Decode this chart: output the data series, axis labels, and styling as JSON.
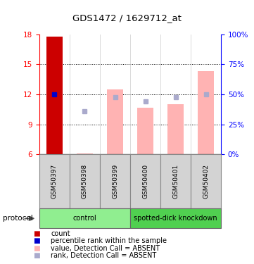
{
  "title": "GDS1472 / 1629712_at",
  "samples": [
    "GSM50397",
    "GSM50398",
    "GSM50399",
    "GSM50400",
    "GSM50401",
    "GSM50402"
  ],
  "ylim_left": [
    6,
    18
  ],
  "ylim_right": [
    0,
    100
  ],
  "yticks_left": [
    6,
    9,
    12,
    15,
    18
  ],
  "yticks_right": [
    0,
    25,
    50,
    75,
    100
  ],
  "yticklabels_right": [
    "0%",
    "25%",
    "50%",
    "75%",
    "100%"
  ],
  "bar_value_color": "#cc0000",
  "bar_absent_color": "#ffb3b3",
  "dot_rank_color": "#0000cc",
  "dot_absent_rank_color": "#aaaacc",
  "count_bar": [
    17.8,
    null,
    null,
    null,
    null,
    null
  ],
  "count_dot": [
    12.0,
    null,
    null,
    null,
    null,
    null
  ],
  "absent_bars": [
    null,
    6.1,
    12.5,
    10.7,
    11.0,
    14.3
  ],
  "absent_dots": [
    null,
    10.3,
    11.7,
    11.3,
    11.7,
    12.0
  ],
  "absent_bar_base": 6,
  "group_control_color": "#90ee90",
  "group_knockdown_color": "#50d050",
  "legend_items": [
    {
      "color": "#cc0000",
      "label": "count"
    },
    {
      "color": "#0000cc",
      "label": "percentile rank within the sample"
    },
    {
      "color": "#ffb3b3",
      "label": "value, Detection Call = ABSENT"
    },
    {
      "color": "#aaaacc",
      "label": "rank, Detection Call = ABSENT"
    }
  ],
  "title_fontsize": 9.5,
  "tick_fontsize": 7.5,
  "label_fontsize": 6.5,
  "legend_fontsize": 7
}
